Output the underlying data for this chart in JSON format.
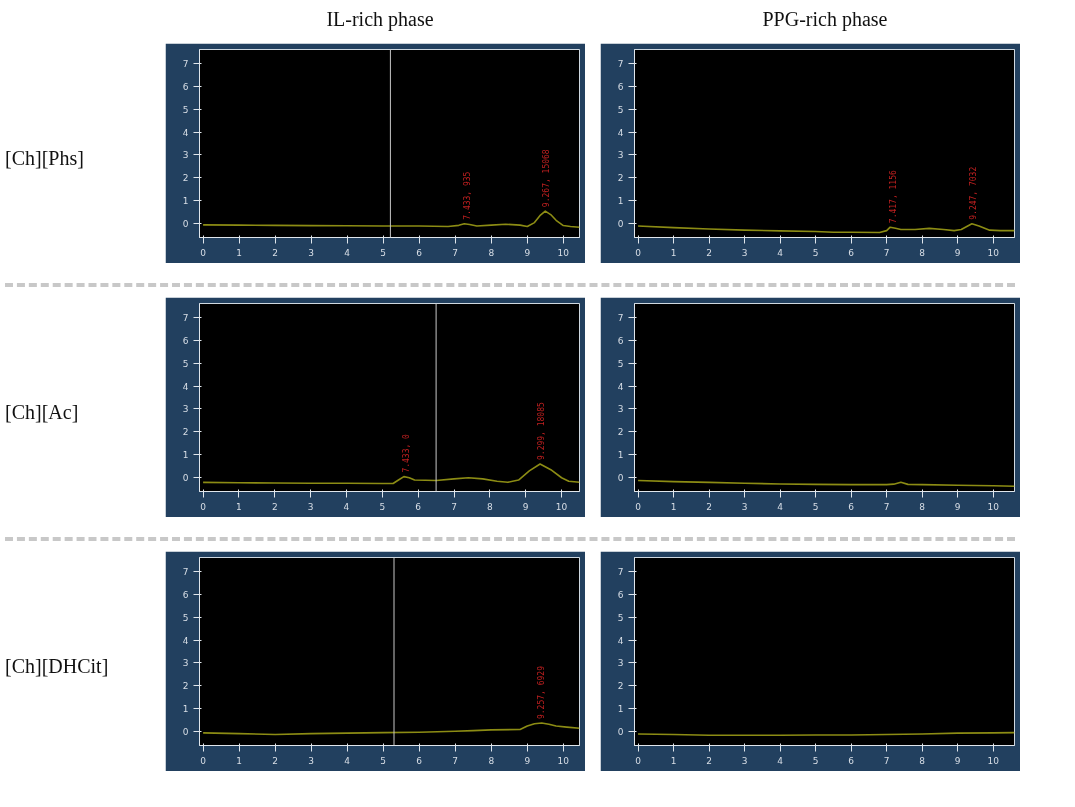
{
  "chart_data": [
    {
      "type": "line",
      "title": "IL-rich phase",
      "ylabel": "[Ch][Phs]",
      "xlim": [
        -0.1,
        10.45
      ],
      "ylim": [
        -0.6,
        7.6
      ],
      "xticks": [
        0,
        1,
        2,
        3,
        4,
        5,
        6,
        7,
        8,
        9,
        10
      ],
      "yticks": [
        0,
        1,
        2,
        3,
        4,
        5,
        6,
        7
      ],
      "x": [
        0,
        1,
        2,
        3,
        4,
        5,
        6,
        6.8,
        7.1,
        7.25,
        7.4,
        7.6,
        8.0,
        8.4,
        8.8,
        9.0,
        9.2,
        9.35,
        9.5,
        9.65,
        9.8,
        10.0,
        10.2,
        10.45
      ],
      "series": [
        {
          "color": "#8c8c14",
          "values": [
            -0.05,
            -0.06,
            -0.07,
            -0.08,
            -0.09,
            -0.1,
            -0.1,
            -0.12,
            -0.07,
            0.0,
            -0.03,
            -0.1,
            -0.06,
            -0.02,
            -0.06,
            -0.12,
            0.05,
            0.35,
            0.55,
            0.4,
            0.15,
            -0.08,
            -0.12,
            -0.15
          ]
        }
      ],
      "ref_lines": [
        {
          "axis": "x",
          "value": 5.2,
          "color": "#c8c8c8"
        }
      ],
      "annotations": [
        {
          "text": "7.433, 935",
          "x": 7.25,
          "y": 0.0
        },
        {
          "text": "9.267, 15068",
          "x": 9.45,
          "y": 0.55
        }
      ]
    },
    {
      "type": "line",
      "title": "PPG-rich phase",
      "xlim": [
        -0.1,
        10.6
      ],
      "ylim": [
        -0.6,
        7.6
      ],
      "xticks": [
        0,
        1,
        2,
        3,
        4,
        5,
        6,
        7,
        8,
        9,
        10
      ],
      "yticks": [
        0,
        1,
        2,
        3,
        4,
        5,
        6,
        7
      ],
      "x": [
        0,
        1,
        2,
        3,
        4,
        5,
        5.5,
        6,
        6.8,
        7.0,
        7.1,
        7.25,
        7.4,
        7.8,
        8.2,
        8.6,
        8.9,
        9.1,
        9.4,
        9.6,
        9.9,
        10.2,
        10.6
      ],
      "series": [
        {
          "color": "#8c8c14",
          "values": [
            -0.1,
            -0.17,
            -0.23,
            -0.28,
            -0.31,
            -0.34,
            -0.37,
            -0.37,
            -0.38,
            -0.3,
            -0.15,
            -0.2,
            -0.25,
            -0.25,
            -0.2,
            -0.25,
            -0.3,
            -0.25,
            0.0,
            -0.1,
            -0.28,
            -0.3,
            -0.3
          ]
        }
      ],
      "annotations": [
        {
          "text": "7.417, 1156",
          "x": 7.1,
          "y": -0.15
        },
        {
          "text": "9.247, 7032",
          "x": 9.35,
          "y": 0.0
        }
      ]
    },
    {
      "type": "line",
      "ylabel": "[Ch][Ac]",
      "xlim": [
        -0.1,
        10.5
      ],
      "ylim": [
        -0.6,
        7.6
      ],
      "xticks": [
        0,
        1,
        2,
        3,
        4,
        5,
        6,
        7,
        8,
        9,
        10
      ],
      "yticks": [
        0,
        1,
        2,
        3,
        4,
        5,
        6,
        7
      ],
      "x": [
        0,
        1,
        2,
        3,
        4,
        5,
        5.3,
        5.45,
        5.6,
        5.75,
        5.9,
        6.5,
        7.0,
        7.4,
        7.8,
        8.2,
        8.5,
        8.8,
        9.1,
        9.4,
        9.7,
        10.0,
        10.2,
        10.5
      ],
      "series": [
        {
          "color": "#8c8c14",
          "values": [
            -0.2,
            -0.22,
            -0.23,
            -0.24,
            -0.24,
            -0.25,
            -0.25,
            -0.1,
            0.05,
            0.0,
            -0.1,
            -0.12,
            -0.05,
            0.0,
            -0.05,
            -0.15,
            -0.2,
            -0.1,
            0.3,
            0.6,
            0.35,
            0.0,
            -0.15,
            -0.2
          ]
        }
      ],
      "ref_lines": [
        {
          "axis": "x",
          "value": 6.5,
          "color": "#c8c8c8"
        }
      ],
      "annotations": [
        {
          "text": "7.433, 0",
          "x": 5.6,
          "y": 0.05
        },
        {
          "text": "9.299, 18085",
          "x": 9.35,
          "y": 0.6
        }
      ]
    },
    {
      "type": "line",
      "xlim": [
        -0.1,
        10.6
      ],
      "ylim": [
        -0.6,
        7.6
      ],
      "xticks": [
        0,
        1,
        2,
        3,
        4,
        5,
        6,
        7,
        8,
        9,
        10
      ],
      "yticks": [
        0,
        1,
        2,
        3,
        4,
        5,
        6,
        7
      ],
      "x": [
        0,
        1,
        2,
        3,
        4,
        5,
        6,
        7,
        7.2,
        7.4,
        7.6,
        8,
        9,
        10,
        10.6
      ],
      "series": [
        {
          "color": "#8c8c14",
          "values": [
            -0.12,
            -0.17,
            -0.2,
            -0.24,
            -0.27,
            -0.29,
            -0.3,
            -0.3,
            -0.28,
            -0.2,
            -0.29,
            -0.3,
            -0.33,
            -0.35,
            -0.37
          ]
        }
      ]
    },
    {
      "type": "line",
      "ylabel": "[Ch][DHCit]",
      "xlim": [
        -0.1,
        10.45
      ],
      "ylim": [
        -0.6,
        7.6
      ],
      "xticks": [
        0,
        1,
        2,
        3,
        4,
        5,
        6,
        7,
        8,
        9,
        10
      ],
      "yticks": [
        0,
        1,
        2,
        3,
        4,
        5,
        6,
        7
      ],
      "x": [
        0,
        1,
        2,
        3,
        4,
        5,
        6,
        7,
        7.5,
        8,
        8.8,
        9.0,
        9.2,
        9.4,
        9.6,
        9.8,
        10.1,
        10.45
      ],
      "series": [
        {
          "color": "#8c8c14",
          "values": [
            -0.05,
            -0.08,
            -0.12,
            -0.08,
            -0.06,
            -0.04,
            -0.02,
            0.02,
            0.05,
            0.08,
            0.1,
            0.25,
            0.35,
            0.38,
            0.33,
            0.25,
            0.2,
            0.15
          ]
        }
      ],
      "ref_lines": [
        {
          "axis": "x",
          "value": 5.3,
          "color": "#c8c8c8"
        }
      ],
      "annotations": [
        {
          "text": "9.257, 6929",
          "x": 9.3,
          "y": 0.38
        }
      ]
    },
    {
      "type": "line",
      "xlim": [
        -0.1,
        10.6
      ],
      "ylim": [
        -0.6,
        7.6
      ],
      "xticks": [
        0,
        1,
        2,
        3,
        4,
        5,
        6,
        7,
        8,
        9,
        10
      ],
      "yticks": [
        0,
        1,
        2,
        3,
        4,
        5,
        6,
        7
      ],
      "x": [
        0,
        1,
        2,
        3,
        4,
        5,
        6,
        7,
        8,
        9,
        10,
        10.6
      ],
      "series": [
        {
          "color": "#8c8c14",
          "values": [
            -0.1,
            -0.12,
            -0.15,
            -0.15,
            -0.15,
            -0.14,
            -0.14,
            -0.12,
            -0.1,
            -0.06,
            -0.05,
            -0.04
          ]
        }
      ]
    }
  ]
}
